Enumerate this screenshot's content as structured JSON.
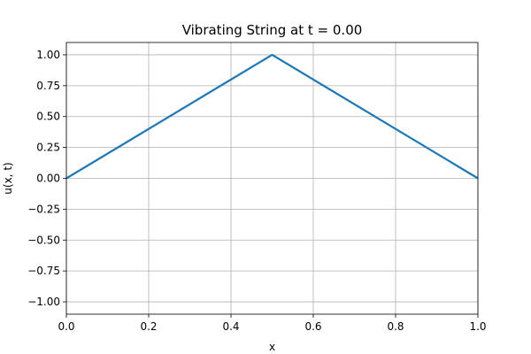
{
  "chart_data": {
    "type": "line",
    "title": "Vibrating String at t = 0.00",
    "xlabel": "x",
    "ylabel": "u(x, t)",
    "xlim": [
      0.0,
      1.0
    ],
    "ylim": [
      -1.1,
      1.1
    ],
    "grid": true,
    "x_ticks": [
      0.0,
      0.2,
      0.4,
      0.6,
      0.8,
      1.0
    ],
    "x_tick_labels": [
      "0.0",
      "0.2",
      "0.4",
      "0.6",
      "0.8",
      "1.0"
    ],
    "y_ticks": [
      -1.0,
      -0.75,
      -0.5,
      -0.25,
      0.0,
      0.25,
      0.5,
      0.75,
      1.0
    ],
    "y_tick_labels": [
      "−1.00",
      "−0.75",
      "−0.50",
      "−0.25",
      "0.00",
      "0.25",
      "0.50",
      "0.75",
      "1.00"
    ],
    "series": [
      {
        "color": "#1f77b4",
        "x": [
          0.0,
          0.5,
          1.0
        ],
        "y": [
          0.0,
          1.0,
          0.0
        ]
      }
    ]
  }
}
